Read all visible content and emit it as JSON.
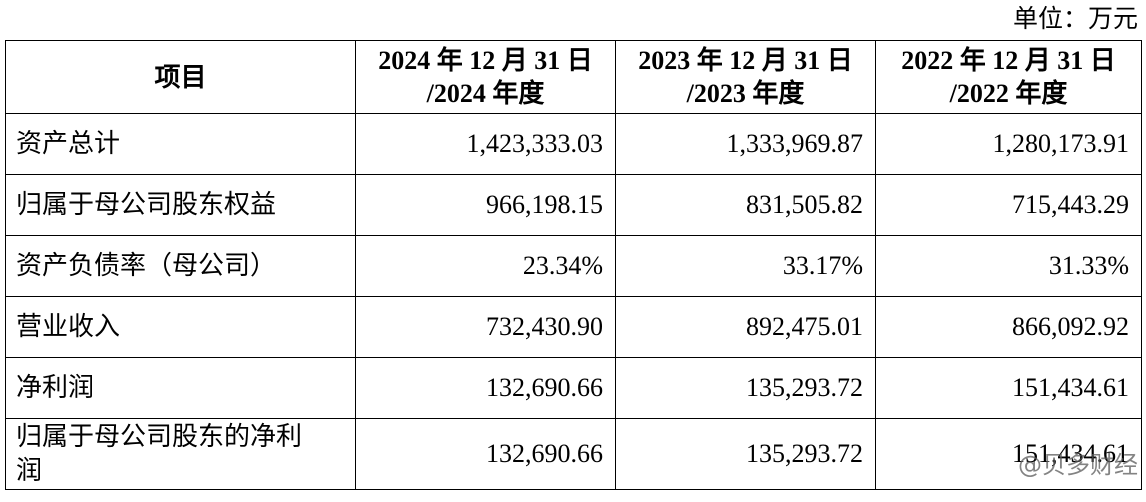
{
  "unit": "单位：万元",
  "table": {
    "header": [
      [
        "项目"
      ],
      [
        "2024 年 12 月 31 日",
        "/2024 年度"
      ],
      [
        "2023 年 12 月 31 日",
        "/2023 年度"
      ],
      [
        "2022 年 12 月 31 日",
        "/2022 年度"
      ]
    ],
    "rows": [
      [
        "资产总计",
        "1,423,333.03",
        "1,333,969.87",
        "1,280,173.91"
      ],
      [
        "归属于母公司股东权益",
        "966,198.15",
        "831,505.82",
        "715,443.29"
      ],
      [
        "资产负债率（母公司）",
        "23.34%",
        "33.17%",
        "31.33%"
      ],
      [
        "营业收入",
        "732,430.90",
        "892,475.01",
        "866,092.92"
      ],
      [
        "净利润",
        "132,690.66",
        "135,293.72",
        "151,434.61"
      ],
      [
        "归属于母公司股东的净利润",
        "132,690.66",
        "135,293.72",
        "151,434.61"
      ]
    ]
  },
  "watermark": "@贝多财经"
}
